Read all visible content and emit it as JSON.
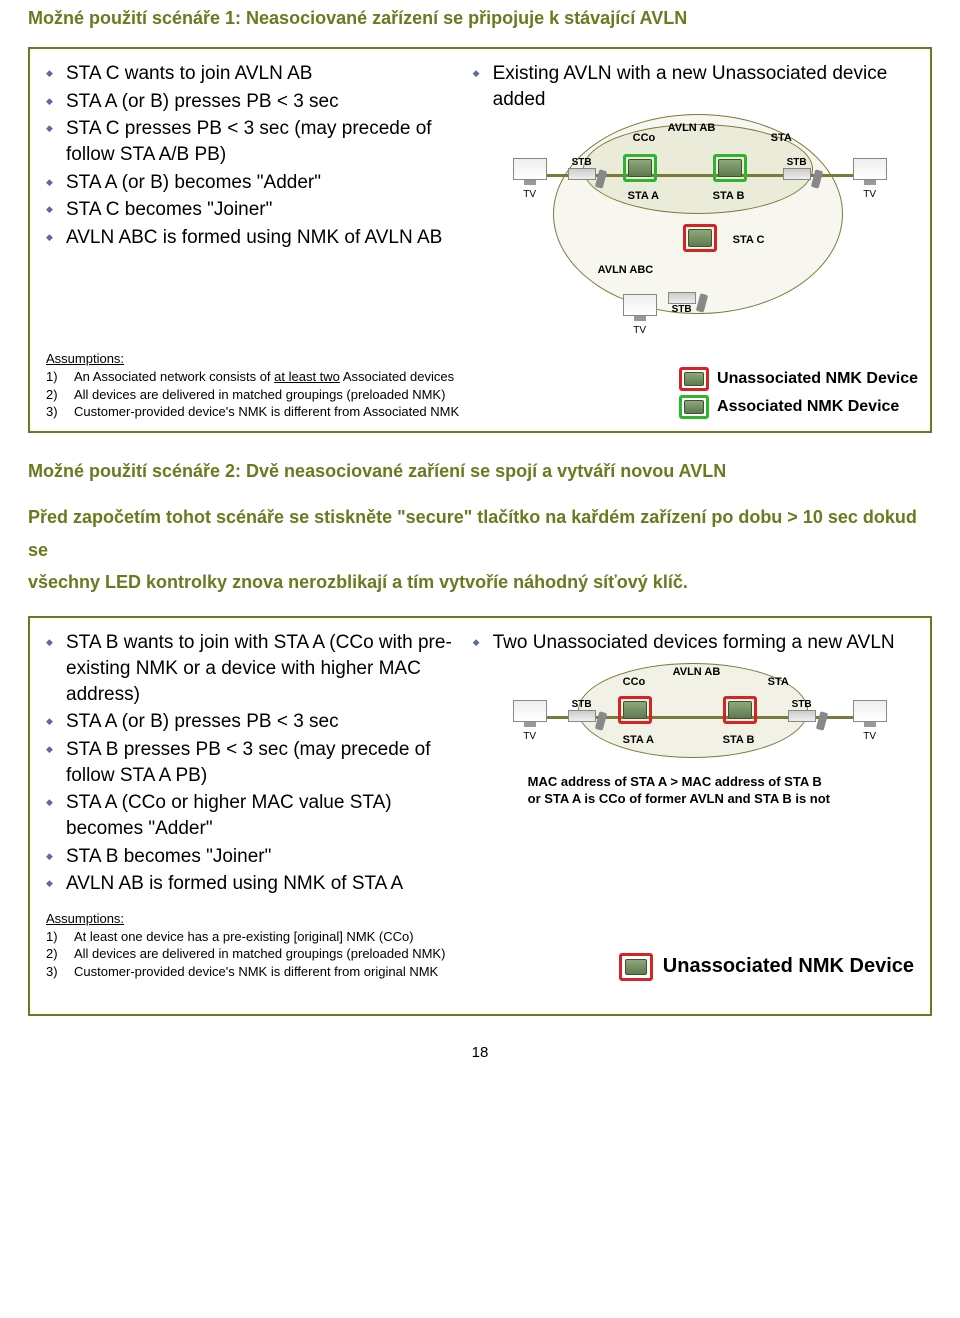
{
  "headings": {
    "h1": "Možné použití scénáře 1: Neasociované zařízení se připojuje k stávající AVLN",
    "h2": "Možné použití scénáře 2: Dvě neasociované zaříení se spojí a vytváří novou AVLN"
  },
  "panel1": {
    "steps": [
      "STA C wants to join AVLN AB",
      "STA A (or B) presses PB < 3 sec",
      "STA C presses PB < 3 sec (may precede of follow STA A/B PB)",
      "STA A (or B) becomes \"Adder\"",
      "STA C becomes \"Joiner\"",
      "AVLN ABC is formed using NMK of AVLN AB"
    ],
    "diag_title": "Existing AVLN with a new Unassociated device added",
    "labels": {
      "avln_ab": "AVLN AB",
      "avln_abc": "AVLN ABC",
      "cco": "CCo",
      "sta": "STA",
      "sta_a": "STA A",
      "sta_b": "STA B",
      "sta_c": "STA C",
      "stb": "STB",
      "tv": "TV"
    },
    "assumptions_head": "Assumptions:",
    "assumptions": [
      {
        "pre": "An Associated network consists of ",
        "ul": "at least two",
        "post": " Associated devices"
      },
      {
        "pre": "All devices are delivered in matched groupings (preloaded NMK)",
        "ul": "",
        "post": ""
      },
      {
        "pre": "Customer-provided device's NMK is different from Associated NMK",
        "ul": "",
        "post": ""
      }
    ],
    "legend": {
      "red": "Unassociated NMK Device",
      "green": "Associated NMK Device"
    }
  },
  "midtext": {
    "l1": "Před započetím tohot scénáře se stiskněte \"secure\" tlačítko na kařdém zařízení po dobu > 10 sec dokud se",
    "l2": "všechny LED kontrolky znova nerozblikají a tím vytvoříe náhodný síťový klíč."
  },
  "panel2": {
    "steps": [
      "STA B wants to join with STA A (CCo with pre-existing NMK or a device with higher MAC address)",
      "STA A (or B) presses PB < 3 sec",
      "STA B presses PB < 3 sec (may precede of follow STA A PB)",
      "STA A (CCo or higher MAC value STA) becomes \"Adder\"",
      "STA B becomes \"Joiner\"",
      "AVLN AB is formed using NMK of STA A"
    ],
    "diag_title": "Two Unassociated devices forming a new AVLN",
    "labels": {
      "avln_ab": "AVLN AB",
      "cco": "CCo",
      "sta": "STA",
      "sta_a": "STA A",
      "sta_b": "STA B",
      "stb": "STB",
      "tv": "TV"
    },
    "mac_note": "MAC address of STA A > MAC address of STA B\nor STA A is CCo of former AVLN and STA B is not",
    "assumptions_head": "Assumptions:",
    "assumptions": [
      "At least one device has a pre-existing [original] NMK (CCo)",
      "All devices are delivered in matched groupings (preloaded NMK)",
      "Customer-provided device's NMK is different from original NMK"
    ],
    "legend": "Unassociated NMK Device"
  },
  "page_number": "18",
  "colors": {
    "olive": "#6a7a1f",
    "green_border": "#2eb52e",
    "red_border": "#d62424",
    "bullet": "#5b6aa0"
  }
}
